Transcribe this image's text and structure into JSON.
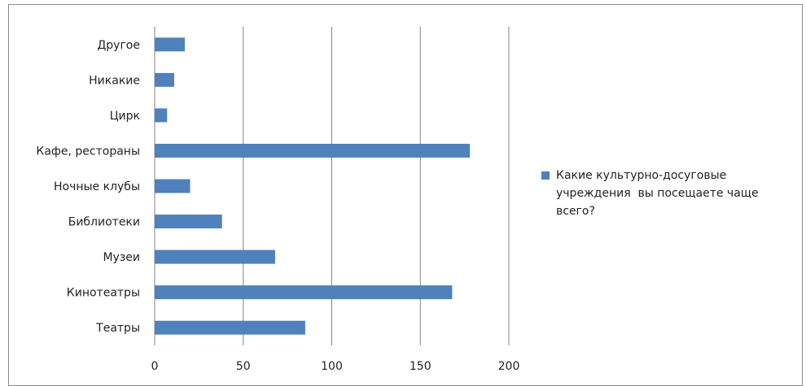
{
  "chart_data": {
    "type": "bar",
    "orientation": "horizontal",
    "categories": [
      "Театры",
      "Кинотеатры",
      "Музеи",
      "Библиотеки",
      "Ночные клубы",
      "Кафе, рестораны",
      "Цирк",
      "Никакие",
      "Другое"
    ],
    "series": [
      {
        "name": "Какие культурно-досуговые учреждения  вы посещаете чаще всего?",
        "values": [
          85,
          168,
          68,
          38,
          20,
          178,
          7,
          11,
          17
        ],
        "color": "#4F81BD"
      }
    ],
    "xlim": [
      0,
      200
    ],
    "xticks": [
      0,
      50,
      100,
      150,
      200
    ],
    "grid": true,
    "legend_position": "right"
  }
}
